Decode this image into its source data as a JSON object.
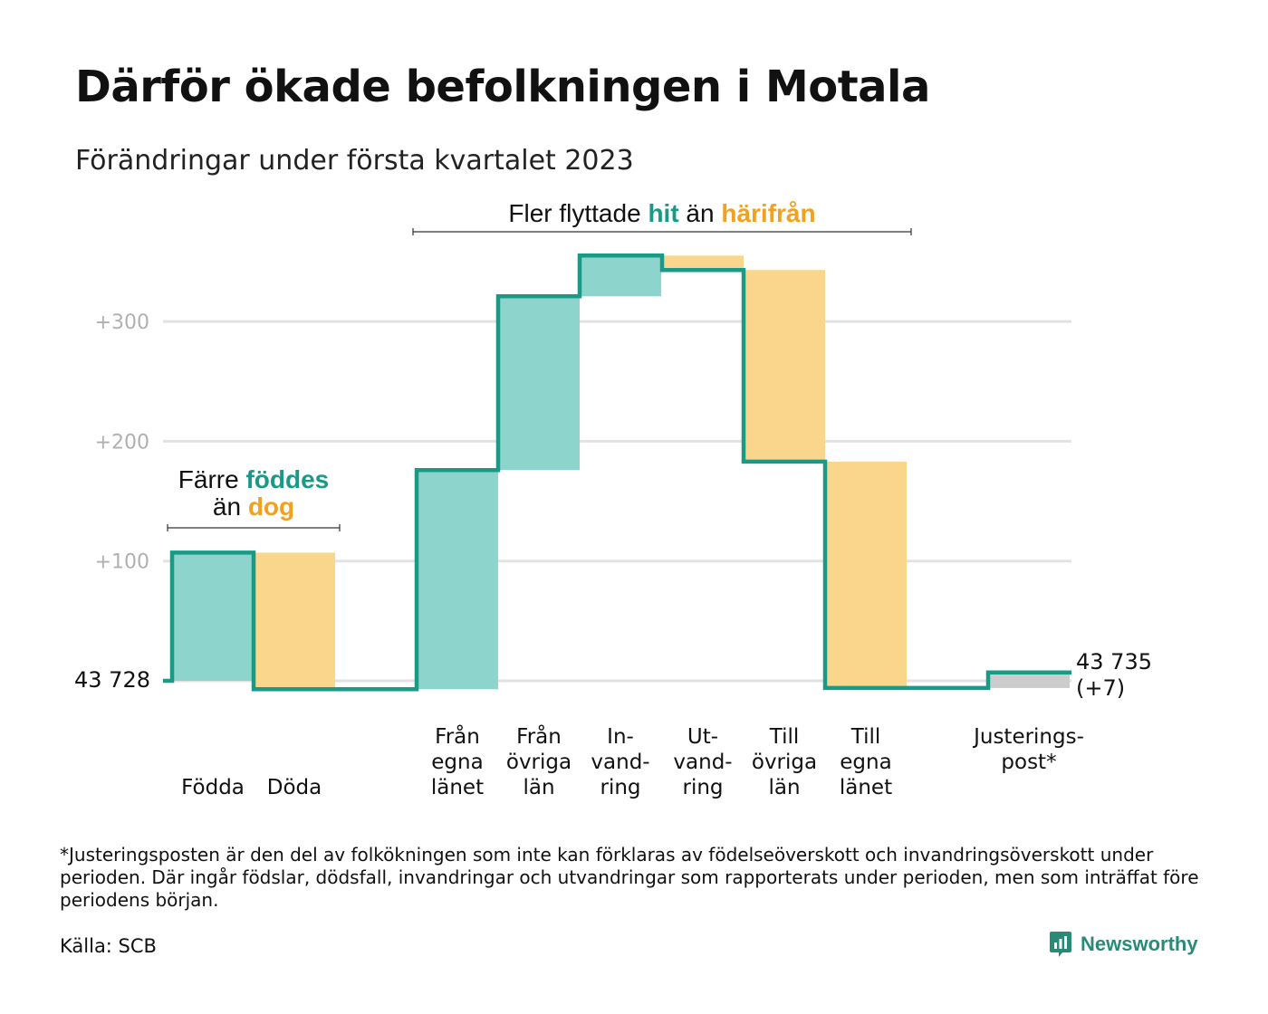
{
  "header": {
    "title": "Därför ökade befolkningen i Motala",
    "subtitle": "Förändringar under första kvartalet 2023"
  },
  "annotations": {
    "births": {
      "prefix": "Färre ",
      "highlight1": "föddes",
      "middle": "än ",
      "highlight2": "dog"
    },
    "migration": {
      "prefix": "Fler flyttade ",
      "highlight1": "hit",
      "middle": " än ",
      "highlight2": "härifrån"
    }
  },
  "colors": {
    "increase": "#8dd5cc",
    "decrease": "#f9d68c",
    "adjustment": "#cccccc",
    "line": "#1a9a86",
    "teal_text": "#1a9a86",
    "orange_text": "#f2a11f",
    "grid": "#e2e2e2",
    "tick_text": "#b0b0b0"
  },
  "chart_data": {
    "type": "waterfall",
    "baseline_value": 43728,
    "start_label": "43 728",
    "end_label": "43 735",
    "end_change_label": "(+7)",
    "y_ticks": [
      {
        "value": 100,
        "label": "+100"
      },
      {
        "value": 200,
        "label": "+200"
      },
      {
        "value": 300,
        "label": "+300"
      }
    ],
    "grid": true,
    "steps": [
      {
        "label": [
          "",
          "",
          "Födda"
        ],
        "change": 107,
        "kind": "increase"
      },
      {
        "label": [
          "",
          "",
          "Döda"
        ],
        "change": -114,
        "kind": "decrease"
      },
      {
        "label": [
          "Från",
          "egna",
          "länet"
        ],
        "change": 183,
        "kind": "increase"
      },
      {
        "label": [
          "Från",
          "övriga",
          "län"
        ],
        "change": 145,
        "kind": "increase"
      },
      {
        "label": [
          "In-",
          "vand-",
          "ring"
        ],
        "change": 34,
        "kind": "increase"
      },
      {
        "label": [
          "Ut-",
          "vand-",
          "ring"
        ],
        "change": -12,
        "kind": "decrease"
      },
      {
        "label": [
          "Till",
          "övriga",
          "län"
        ],
        "change": -160,
        "kind": "decrease"
      },
      {
        "label": [
          "Till",
          "egna",
          "länet"
        ],
        "change": -189,
        "kind": "decrease"
      },
      {
        "label": [
          "Justerings-",
          "post*",
          ""
        ],
        "change": 13,
        "kind": "adjustment"
      }
    ]
  },
  "footer": {
    "footnote": "*Justeringsposten är den del av folkökningen som inte kan förklaras av födelseöverskott och invandringsöverskott under perioden. Där ingår födslar, dödsfall, invandringar och utvandringar som rapporterats under perioden, men som inträffat före periodens början.",
    "source": "Källa: SCB",
    "brand": "Newsworthy"
  }
}
